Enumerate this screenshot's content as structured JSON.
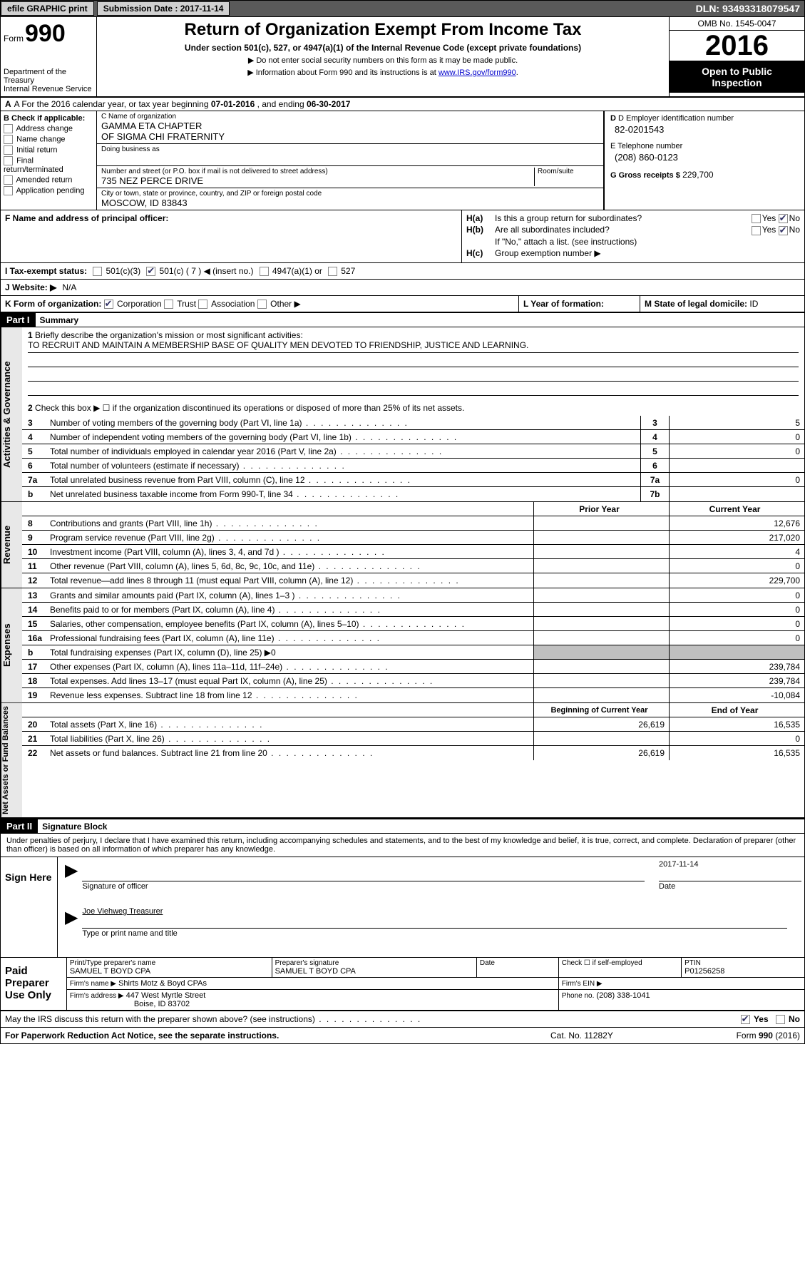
{
  "topbar": {
    "efile": "efile GRAPHIC print",
    "submission_label": "Submission Date :",
    "submission_date": "2017-11-14",
    "dln_label": "DLN:",
    "dln": "93493318079547"
  },
  "header": {
    "form_word": "Form",
    "form_num": "990",
    "dept1": "Department of the Treasury",
    "dept2": "Internal Revenue Service",
    "title": "Return of Organization Exempt From Income Tax",
    "subtitle": "Under section 501(c), 527, or 4947(a)(1) of the Internal Revenue Code (except private foundations)",
    "note1": "▶ Do not enter social security numbers on this form as it may be made public.",
    "note2_pre": "▶ Information about Form 990 and its instructions is at ",
    "note2_link": "www.IRS.gov/form990",
    "omb": "OMB No. 1545-0047",
    "year": "2016",
    "inspect1": "Open to Public",
    "inspect2": "Inspection"
  },
  "row_a": {
    "pre": "A   For the 2016 calendar year, or tax year beginning ",
    "begin": "07-01-2016",
    "mid": "   , and ending ",
    "end": "06-30-2017"
  },
  "col_b": {
    "hdr": "B Check if applicable:",
    "items": [
      "Address change",
      "Name change",
      "Initial return",
      "Final return/terminated",
      "Amended return",
      "Application pending"
    ]
  },
  "col_c": {
    "name_lbl": "C Name of organization",
    "name1": "GAMMA ETA CHAPTER",
    "name2": "OF SIGMA CHI FRATERNITY",
    "dba_lbl": "Doing business as",
    "street_lbl": "Number and street (or P.O. box if mail is not delivered to street address)",
    "room_lbl": "Room/suite",
    "street": "735 NEZ PERCE DRIVE",
    "city_lbl": "City or town, state or province, country, and ZIP or foreign postal code",
    "city": "MOSCOW, ID  83843"
  },
  "col_d": {
    "d_lbl": "D Employer identification number",
    "d_val": "82-0201543",
    "e_lbl": "E Telephone number",
    "e_val": "(208) 860-0123",
    "g_lbl": "G Gross receipts $",
    "g_val": "229,700"
  },
  "f": {
    "lbl": "F Name and address of principal officer:"
  },
  "h": {
    "a_lbl": "H(a)",
    "a_txt": "Is this a group return for subordinates?",
    "b_lbl": "H(b)",
    "b_txt": "Are all subordinates included?",
    "b_note": "If \"No,\" attach a list. (see instructions)",
    "c_lbl": "H(c)",
    "c_txt": "Group exemption number ▶",
    "yes": "Yes",
    "no": "No"
  },
  "row_i": {
    "lbl": "I   Tax-exempt status:",
    "a": "501(c)(3)",
    "b": "501(c) (",
    "bn": "7",
    "bp": ")  ◀ (insert no.)",
    "c": "4947(a)(1) or",
    "d": "527"
  },
  "row_j": {
    "lbl": "J   Website: ▶",
    "val": "N/A"
  },
  "row_k": {
    "lbl": "K Form of organization:",
    "a": "Corporation",
    "b": "Trust",
    "c": "Association",
    "d": "Other ▶"
  },
  "row_l": {
    "lbl": "L Year of formation:"
  },
  "row_m": {
    "lbl": "M State of legal domicile:",
    "val": "ID"
  },
  "part1": {
    "num": "Part I",
    "title": "Summary"
  },
  "mission": {
    "num": "1",
    "lbl": "Briefly describe the organization's mission or most significant activities:",
    "txt": "TO RECRUIT AND MAINTAIN A MEMBERSHIP BASE OF QUALITY MEN DEVOTED TO FRIENDSHIP, JUSTICE AND LEARNING."
  },
  "line2": {
    "num": "2",
    "txt": "Check this box ▶ ☐  if the organization discontinued its operations or disposed of more than 25% of its net assets."
  },
  "gov_lines": [
    {
      "num": "3",
      "txt": "Number of voting members of the governing body (Part VI, line 1a)",
      "box": "3",
      "val": "5"
    },
    {
      "num": "4",
      "txt": "Number of independent voting members of the governing body (Part VI, line 1b)",
      "box": "4",
      "val": "0"
    },
    {
      "num": "5",
      "txt": "Total number of individuals employed in calendar year 2016 (Part V, line 2a)",
      "box": "5",
      "val": "0"
    },
    {
      "num": "6",
      "txt": "Total number of volunteers (estimate if necessary)",
      "box": "6",
      "val": ""
    },
    {
      "num": "7a",
      "txt": "Total unrelated business revenue from Part VIII, column (C), line 12",
      "box": "7a",
      "val": "0"
    },
    {
      "num": "b",
      "txt": "Net unrelated business taxable income from Form 990-T, line 34",
      "box": "7b",
      "val": ""
    }
  ],
  "col_hdr": {
    "prior": "Prior Year",
    "curr": "Current Year"
  },
  "rev_lines": [
    {
      "num": "8",
      "txt": "Contributions and grants (Part VIII, line 1h)",
      "prior": "",
      "curr": "12,676"
    },
    {
      "num": "9",
      "txt": "Program service revenue (Part VIII, line 2g)",
      "prior": "",
      "curr": "217,020"
    },
    {
      "num": "10",
      "txt": "Investment income (Part VIII, column (A), lines 3, 4, and 7d )",
      "prior": "",
      "curr": "4"
    },
    {
      "num": "11",
      "txt": "Other revenue (Part VIII, column (A), lines 5, 6d, 8c, 9c, 10c, and 11e)",
      "prior": "",
      "curr": "0"
    },
    {
      "num": "12",
      "txt": "Total revenue—add lines 8 through 11 (must equal Part VIII, column (A), line 12)",
      "prior": "",
      "curr": "229,700"
    }
  ],
  "exp_lines": [
    {
      "num": "13",
      "txt": "Grants and similar amounts paid (Part IX, column (A), lines 1–3 )",
      "prior": "",
      "curr": "0"
    },
    {
      "num": "14",
      "txt": "Benefits paid to or for members (Part IX, column (A), line 4)",
      "prior": "",
      "curr": "0"
    },
    {
      "num": "15",
      "txt": "Salaries, other compensation, employee benefits (Part IX, column (A), lines 5–10)",
      "prior": "",
      "curr": "0"
    },
    {
      "num": "16a",
      "txt": "Professional fundraising fees (Part IX, column (A), line 11e)",
      "prior": "",
      "curr": "0"
    },
    {
      "num": "b",
      "txt": "Total fundraising expenses (Part IX, column (D), line 25) ▶0",
      "prior": "shaded",
      "curr": "shaded"
    },
    {
      "num": "17",
      "txt": "Other expenses (Part IX, column (A), lines 11a–11d, 11f–24e)",
      "prior": "",
      "curr": "239,784"
    },
    {
      "num": "18",
      "txt": "Total expenses. Add lines 13–17 (must equal Part IX, column (A), line 25)",
      "prior": "",
      "curr": "239,784"
    },
    {
      "num": "19",
      "txt": "Revenue less expenses. Subtract line 18 from line 12",
      "prior": "",
      "curr": "-10,084"
    }
  ],
  "net_hdr": {
    "prior": "Beginning of Current Year",
    "curr": "End of Year"
  },
  "net_lines": [
    {
      "num": "20",
      "txt": "Total assets (Part X, line 16)",
      "prior": "26,619",
      "curr": "16,535"
    },
    {
      "num": "21",
      "txt": "Total liabilities (Part X, line 26)",
      "prior": "",
      "curr": "0"
    },
    {
      "num": "22",
      "txt": "Net assets or fund balances. Subtract line 21 from line 20",
      "prior": "26,619",
      "curr": "16,535"
    }
  ],
  "side": {
    "gov": "Activities & Governance",
    "rev": "Revenue",
    "exp": "Expenses",
    "net": "Net Assets or Fund Balances"
  },
  "part2": {
    "num": "Part II",
    "title": "Signature Block"
  },
  "sig_intro": "Under penalties of perjury, I declare that I have examined this return, including accompanying schedules and statements, and to the best of my knowledge and belief, it is true, correct, and complete. Declaration of preparer (other than officer) is based on all information of which preparer has any knowledge.",
  "sign": {
    "lbl": "Sign Here",
    "date": "2017-11-14",
    "sig_lbl": "Signature of officer",
    "date_lbl": "Date",
    "name": "Joe Viehweg Treasurer",
    "name_lbl": "Type or print name and title"
  },
  "paid": {
    "lbl": "Paid Preparer Use Only",
    "r1c1_lbl": "Print/Type preparer's name",
    "r1c1": "SAMUEL T BOYD CPA",
    "r1c2_lbl": "Preparer's signature",
    "r1c2": "SAMUEL T BOYD CPA",
    "r1c3_lbl": "Date",
    "r1c4_lbl": "Check ☐ if self-employed",
    "r1c5_lbl": "PTIN",
    "r1c5": "P01256258",
    "r2c1_lbl": "Firm's name     ▶",
    "r2c1": "Shirts Motz & Boyd CPAs",
    "r2c2_lbl": "Firm's EIN ▶",
    "r3c1_lbl": "Firm's address ▶",
    "r3c1a": "447 West Myrtle Street",
    "r3c1b": "Boise, ID  83702",
    "r3c2_lbl": "Phone no.",
    "r3c2": "(208) 338-1041"
  },
  "discuss": {
    "txt": "May the IRS discuss this return with the preparer shown above? (see instructions)",
    "yes": "Yes",
    "no": "No"
  },
  "footer": {
    "left": "For Paperwork Reduction Act Notice, see the separate instructions.",
    "mid": "Cat. No. 11282Y",
    "right": "Form 990 (2016)"
  }
}
